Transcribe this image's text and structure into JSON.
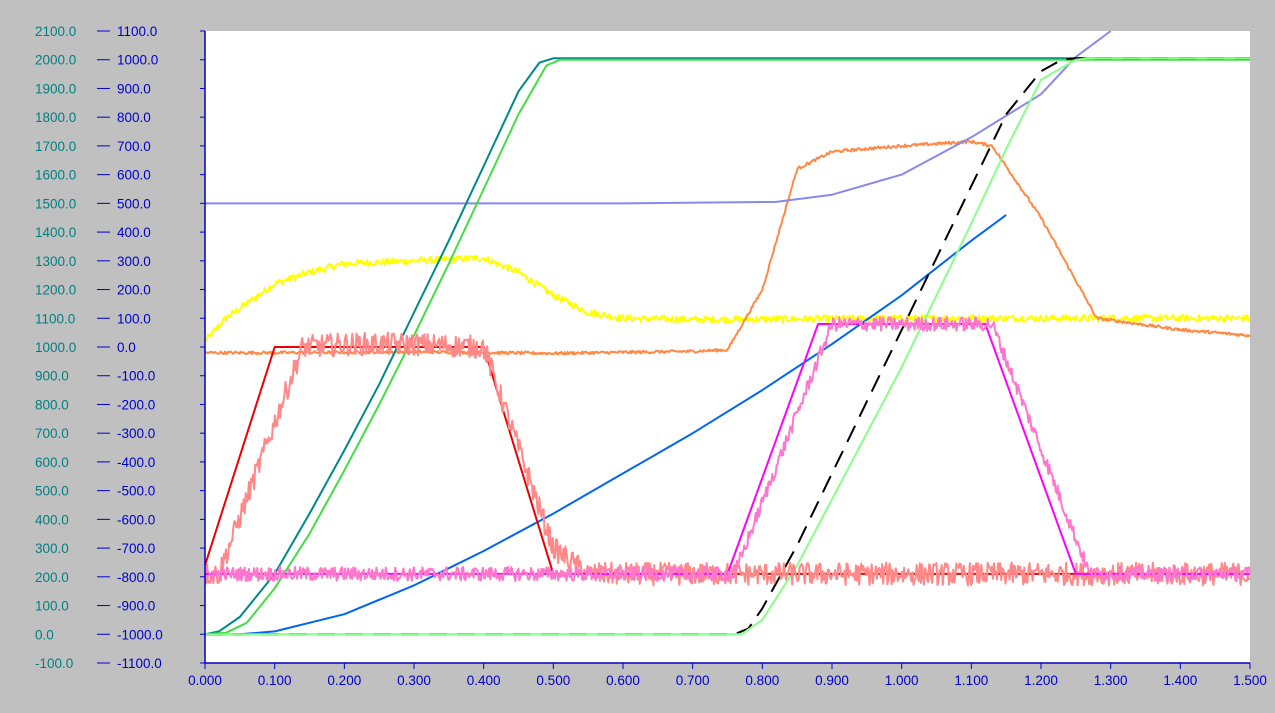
{
  "chart_data": {
    "type": "line",
    "title": "",
    "xlabel": "",
    "ylabel": "",
    "xlim": [
      0,
      1.5
    ],
    "ylim_left": [
      -100,
      2100
    ],
    "ylim_right": [
      -1100,
      1100
    ],
    "left_axis_color": "#008080",
    "right_axis_color": "#0000cc",
    "grid": false,
    "left_ticks": [
      "2100.0",
      "2000.0",
      "1900.0",
      "1800.0",
      "1700.0",
      "1600.0",
      "1500.0",
      "1400.0",
      "1300.0",
      "1200.0",
      "1100.0",
      "1000.0",
      "900.0",
      "800.0",
      "700.0",
      "600.0",
      "500.0",
      "400.0",
      "300.0",
      "200.0",
      "100.0",
      "0.0",
      "-100.0"
    ],
    "right_ticks": [
      "1100.0",
      "1000.0",
      "900.0",
      "800.0",
      "700.0",
      "600.0",
      "500.0",
      "400.0",
      "300.0",
      "200.0",
      "100.0",
      "0.0",
      "-100.0",
      "-200.0",
      "-300.0",
      "-400.0",
      "-500.0",
      "-600.0",
      "-700.0",
      "-800.0",
      "-900.0",
      "-1000.0",
      "-1100.0"
    ],
    "x_ticks": [
      "0.000",
      "0.100",
      "0.200",
      "0.300",
      "0.400",
      "0.500",
      "0.600",
      "0.700",
      "0.800",
      "0.900",
      "1.000",
      "1.100",
      "1.200",
      "1.300",
      "1.400",
      "1.500"
    ],
    "series": [
      {
        "axis": "left",
        "color": "#ffff00",
        "noise": 12,
        "x": [
          0,
          0.03,
          0.1,
          0.15,
          0.2,
          0.3,
          0.35,
          0.4,
          0.45,
          0.5,
          0.55,
          0.6,
          0.7,
          1.0,
          1.5
        ],
        "y": [
          1020,
          1100,
          1220,
          1260,
          1290,
          1300,
          1305,
          1310,
          1260,
          1180,
          1120,
          1100,
          1095,
          1100,
          1100
        ]
      },
      {
        "axis": "left",
        "color": "#ff8844",
        "noise": 5,
        "x": [
          0,
          0.1,
          0.3,
          0.5,
          0.7,
          0.75,
          0.8,
          0.85,
          0.9,
          1.0,
          1.1,
          1.13,
          1.2,
          1.28,
          1.4,
          1.5
        ],
        "y": [
          980,
          980,
          983,
          978,
          985,
          990,
          1200,
          1620,
          1680,
          1700,
          1715,
          1700,
          1450,
          1100,
          1060,
          1040
        ]
      },
      {
        "axis": "left",
        "color": "#8888ee",
        "noise": 0,
        "x": [
          0,
          0.2,
          0.4,
          0.6,
          0.82,
          0.9,
          1.0,
          1.1,
          1.2,
          1.25,
          1.3
        ],
        "y": [
          1500,
          1500,
          1500,
          1500,
          1505,
          1530,
          1600,
          1730,
          1880,
          2010,
          2100
        ]
      },
      {
        "axis": "left",
        "color": "#0066ee",
        "noise": 0,
        "x": [
          0,
          0.05,
          0.1,
          0.2,
          0.3,
          0.35,
          0.4,
          0.5,
          0.6,
          0.7,
          0.8,
          0.9,
          1.0,
          1.1,
          1.15
        ],
        "y": [
          0,
          0,
          10,
          70,
          170,
          230,
          290,
          420,
          560,
          700,
          850,
          1010,
          1180,
          1370,
          1460
        ]
      },
      {
        "axis": "left",
        "color": "#008888",
        "noise": 0,
        "x": [
          0,
          0.02,
          0.05,
          0.1,
          0.15,
          0.2,
          0.25,
          0.3,
          0.35,
          0.4,
          0.45,
          0.48,
          0.5,
          1.5
        ],
        "y": [
          0,
          10,
          60,
          210,
          420,
          640,
          870,
          1120,
          1370,
          1630,
          1890,
          1990,
          2005,
          2005
        ]
      },
      {
        "axis": "left",
        "color": "#44dd44",
        "noise": 0,
        "x": [
          0,
          0.03,
          0.06,
          0.1,
          0.15,
          0.2,
          0.25,
          0.3,
          0.35,
          0.4,
          0.45,
          0.49,
          0.51,
          1.5
        ],
        "y": [
          0,
          5,
          40,
          160,
          350,
          570,
          800,
          1040,
          1290,
          1550,
          1810,
          1980,
          2000,
          2000
        ]
      },
      {
        "axis": "left",
        "color": "#000000",
        "noise": 0,
        "dashed": true,
        "x": [
          0,
          0.76,
          0.78,
          0.8,
          0.85,
          0.9,
          0.95,
          1.0,
          1.05,
          1.1,
          1.15,
          1.2,
          1.23,
          1.25,
          1.5
        ],
        "y": [
          0,
          0,
          20,
          90,
          310,
          560,
          810,
          1060,
          1310,
          1560,
          1810,
          1960,
          2000,
          2005,
          2005
        ]
      },
      {
        "axis": "left",
        "color": "#88ff88",
        "noise": 0,
        "x": [
          0,
          0.77,
          0.8,
          0.85,
          0.9,
          0.95,
          1.0,
          1.05,
          1.1,
          1.15,
          1.2,
          1.25,
          1.27,
          1.5
        ],
        "y": [
          0,
          0,
          50,
          240,
          470,
          700,
          930,
          1180,
          1430,
          1690,
          1930,
          2000,
          2005,
          2005
        ]
      },
      {
        "axis": "left",
        "color": "#ee0000",
        "noise": 0,
        "x": [
          0,
          0.1,
          0.2,
          0.3,
          0.4,
          0.5,
          0.6,
          0.8,
          1.0,
          1.2,
          1.5
        ],
        "y": [
          240,
          1000,
          1000,
          1000,
          1000,
          210,
          210,
          210,
          210,
          210,
          210
        ]
      },
      {
        "axis": "left",
        "color": "#ff8888",
        "noise": 40,
        "x": [
          0,
          0.02,
          0.14,
          0.2,
          0.3,
          0.4,
          0.45,
          0.5,
          0.55,
          0.6,
          0.8,
          1.0,
          1.2,
          1.5
        ],
        "y": [
          210,
          210,
          1000,
          1010,
          1010,
          1000,
          650,
          300,
          210,
          210,
          210,
          210,
          210,
          210
        ]
      },
      {
        "axis": "left",
        "color": "#ff00ff",
        "noise": 0,
        "x": [
          0,
          0.3,
          0.5,
          0.75,
          0.88,
          1.0,
          1.12,
          1.25,
          1.4,
          1.5
        ],
        "y": [
          210,
          210,
          210,
          210,
          1080,
          1080,
          1080,
          210,
          210,
          210
        ]
      },
      {
        "axis": "left",
        "color": "#ff77cc",
        "noise": 25,
        "x": [
          0,
          0.5,
          0.76,
          0.9,
          1.0,
          1.1,
          1.13,
          1.27,
          1.4,
          1.5
        ],
        "y": [
          210,
          210,
          210,
          1080,
          1080,
          1080,
          1080,
          210,
          210,
          210
        ]
      }
    ]
  }
}
